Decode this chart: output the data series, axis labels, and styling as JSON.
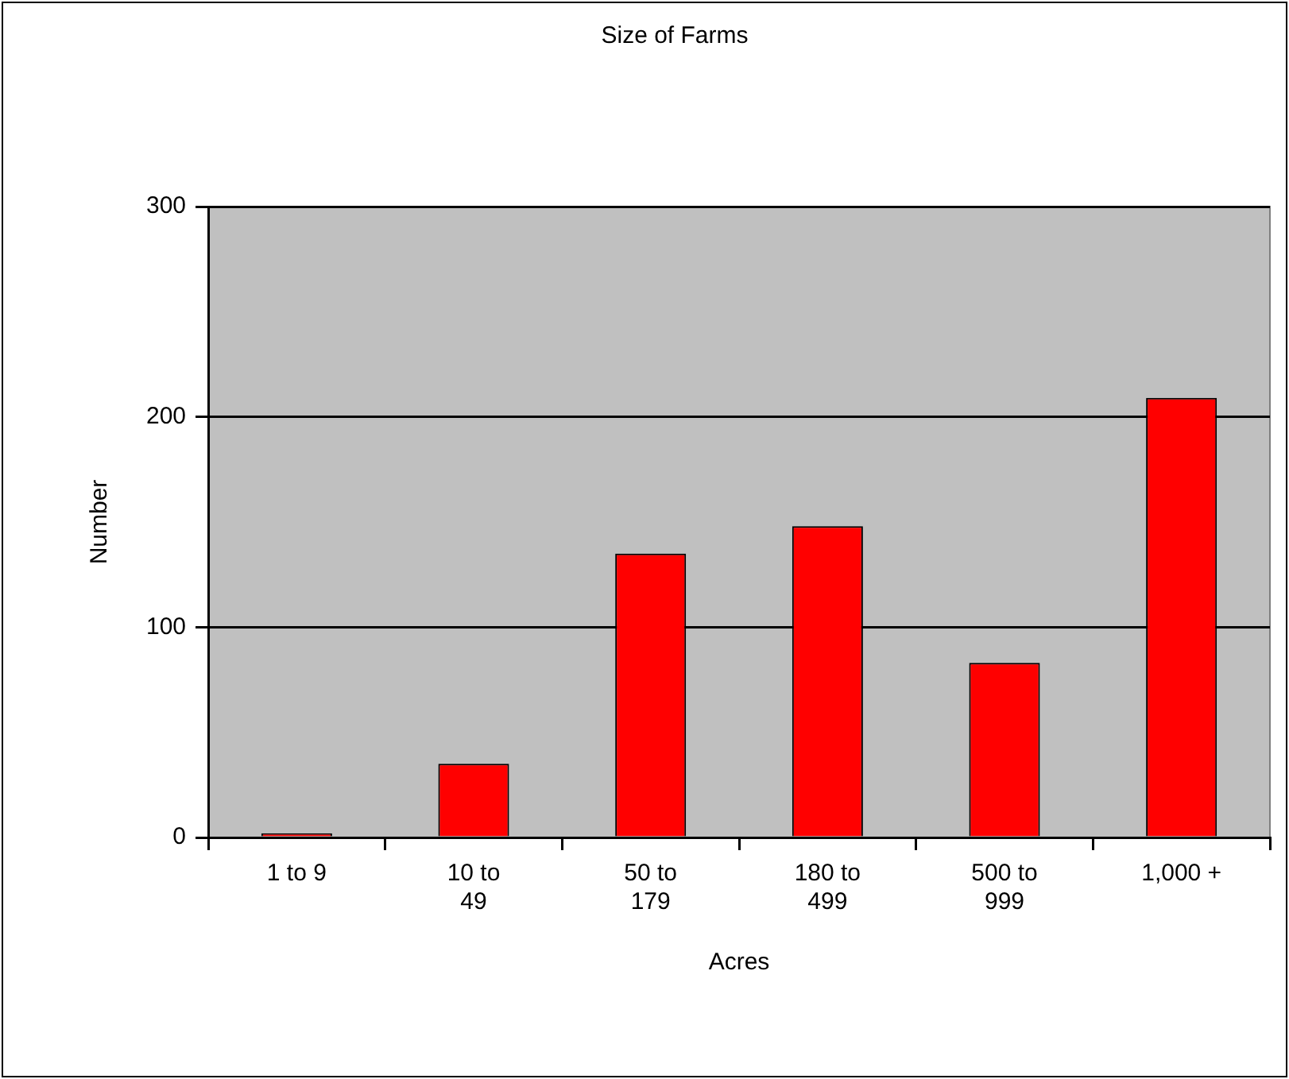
{
  "chart_data": {
    "type": "bar",
    "title": "Size of Farms",
    "xlabel": "Acres",
    "ylabel": "Number",
    "categories": [
      "1 to 9",
      "10 to 49",
      "50 to 179",
      "180 to 499",
      "500 to 999",
      "1,000 +"
    ],
    "values": [
      2,
      35,
      135,
      148,
      83,
      209
    ],
    "color": "#ff0000",
    "ylim": [
      0,
      300
    ],
    "yticks": [
      0,
      100,
      200,
      300
    ],
    "grid": "y",
    "legend": false
  }
}
